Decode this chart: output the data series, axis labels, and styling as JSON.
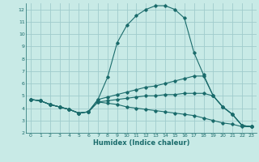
{
  "xlabel": "Humidex (Indice chaleur)",
  "bg_color": "#c8eae6",
  "grid_color": "#a0cccc",
  "line_color": "#1a6b6b",
  "xlim": [
    -0.5,
    23.5
  ],
  "ylim": [
    2,
    12.5
  ],
  "xticks": [
    0,
    1,
    2,
    3,
    4,
    5,
    6,
    7,
    8,
    9,
    10,
    11,
    12,
    13,
    14,
    15,
    16,
    17,
    18,
    19,
    20,
    21,
    22,
    23
  ],
  "yticks": [
    2,
    3,
    4,
    5,
    6,
    7,
    8,
    9,
    10,
    11,
    12
  ],
  "lines": [
    {
      "x": [
        0,
        1,
        2,
        3,
        4,
        5,
        6,
        7,
        8,
        9,
        10,
        11,
        12,
        13,
        14,
        15,
        16,
        17,
        18,
        19,
        20,
        21,
        22,
        23
      ],
      "y": [
        4.7,
        4.6,
        4.3,
        4.1,
        3.9,
        3.6,
        3.7,
        4.7,
        6.5,
        9.3,
        10.7,
        11.5,
        12.0,
        12.3,
        12.3,
        12.0,
        11.3,
        8.5,
        6.7,
        5.0,
        4.1,
        3.5,
        2.6,
        2.5
      ]
    },
    {
      "x": [
        0,
        1,
        2,
        3,
        4,
        5,
        6,
        7,
        8,
        9,
        10,
        11,
        12,
        13,
        14,
        15,
        16,
        17,
        18,
        19,
        20,
        21,
        22,
        23
      ],
      "y": [
        4.7,
        4.6,
        4.3,
        4.1,
        3.9,
        3.6,
        3.7,
        4.7,
        4.9,
        5.1,
        5.3,
        5.5,
        5.7,
        5.8,
        6.0,
        6.2,
        6.4,
        6.6,
        6.6,
        5.0,
        4.1,
        3.5,
        2.6,
        2.5
      ]
    },
    {
      "x": [
        0,
        1,
        2,
        3,
        4,
        5,
        6,
        7,
        8,
        9,
        10,
        11,
        12,
        13,
        14,
        15,
        16,
        17,
        18,
        19,
        20,
        21,
        22,
        23
      ],
      "y": [
        4.7,
        4.6,
        4.3,
        4.1,
        3.9,
        3.6,
        3.7,
        4.5,
        4.6,
        4.7,
        4.8,
        4.9,
        5.0,
        5.0,
        5.1,
        5.1,
        5.2,
        5.2,
        5.2,
        5.0,
        4.1,
        3.5,
        2.6,
        2.5
      ]
    },
    {
      "x": [
        0,
        1,
        2,
        3,
        4,
        5,
        6,
        7,
        8,
        9,
        10,
        11,
        12,
        13,
        14,
        15,
        16,
        17,
        18,
        19,
        20,
        21,
        22,
        23
      ],
      "y": [
        4.7,
        4.6,
        4.3,
        4.1,
        3.9,
        3.6,
        3.7,
        4.5,
        4.4,
        4.3,
        4.1,
        4.0,
        3.9,
        3.8,
        3.7,
        3.6,
        3.5,
        3.4,
        3.2,
        3.0,
        2.8,
        2.7,
        2.5,
        2.5
      ]
    }
  ]
}
